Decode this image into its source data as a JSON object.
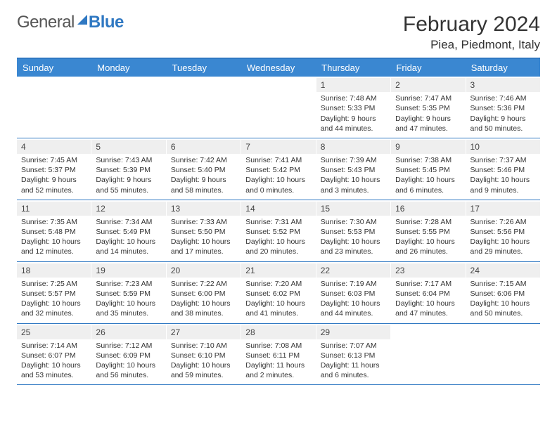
{
  "logo": {
    "word1": "General",
    "word2": "Blue"
  },
  "title": "February 2024",
  "location": "Piea, Piedmont, Italy",
  "colors": {
    "accent": "#3a87d1",
    "accent_border": "#2f78c2",
    "daynum_bg": "#efefef",
    "text": "#333333",
    "background": "#ffffff"
  },
  "day_names": [
    "Sunday",
    "Monday",
    "Tuesday",
    "Wednesday",
    "Thursday",
    "Friday",
    "Saturday"
  ],
  "weeks": [
    [
      {
        "empty": true
      },
      {
        "empty": true
      },
      {
        "empty": true
      },
      {
        "empty": true
      },
      {
        "day": "1",
        "sunrise": "Sunrise: 7:48 AM",
        "sunset": "Sunset: 5:33 PM",
        "daylight1": "Daylight: 9 hours",
        "daylight2": "and 44 minutes."
      },
      {
        "day": "2",
        "sunrise": "Sunrise: 7:47 AM",
        "sunset": "Sunset: 5:35 PM",
        "daylight1": "Daylight: 9 hours",
        "daylight2": "and 47 minutes."
      },
      {
        "day": "3",
        "sunrise": "Sunrise: 7:46 AM",
        "sunset": "Sunset: 5:36 PM",
        "daylight1": "Daylight: 9 hours",
        "daylight2": "and 50 minutes."
      }
    ],
    [
      {
        "day": "4",
        "sunrise": "Sunrise: 7:45 AM",
        "sunset": "Sunset: 5:37 PM",
        "daylight1": "Daylight: 9 hours",
        "daylight2": "and 52 minutes."
      },
      {
        "day": "5",
        "sunrise": "Sunrise: 7:43 AM",
        "sunset": "Sunset: 5:39 PM",
        "daylight1": "Daylight: 9 hours",
        "daylight2": "and 55 minutes."
      },
      {
        "day": "6",
        "sunrise": "Sunrise: 7:42 AM",
        "sunset": "Sunset: 5:40 PM",
        "daylight1": "Daylight: 9 hours",
        "daylight2": "and 58 minutes."
      },
      {
        "day": "7",
        "sunrise": "Sunrise: 7:41 AM",
        "sunset": "Sunset: 5:42 PM",
        "daylight1": "Daylight: 10 hours",
        "daylight2": "and 0 minutes."
      },
      {
        "day": "8",
        "sunrise": "Sunrise: 7:39 AM",
        "sunset": "Sunset: 5:43 PM",
        "daylight1": "Daylight: 10 hours",
        "daylight2": "and 3 minutes."
      },
      {
        "day": "9",
        "sunrise": "Sunrise: 7:38 AM",
        "sunset": "Sunset: 5:45 PM",
        "daylight1": "Daylight: 10 hours",
        "daylight2": "and 6 minutes."
      },
      {
        "day": "10",
        "sunrise": "Sunrise: 7:37 AM",
        "sunset": "Sunset: 5:46 PM",
        "daylight1": "Daylight: 10 hours",
        "daylight2": "and 9 minutes."
      }
    ],
    [
      {
        "day": "11",
        "sunrise": "Sunrise: 7:35 AM",
        "sunset": "Sunset: 5:48 PM",
        "daylight1": "Daylight: 10 hours",
        "daylight2": "and 12 minutes."
      },
      {
        "day": "12",
        "sunrise": "Sunrise: 7:34 AM",
        "sunset": "Sunset: 5:49 PM",
        "daylight1": "Daylight: 10 hours",
        "daylight2": "and 14 minutes."
      },
      {
        "day": "13",
        "sunrise": "Sunrise: 7:33 AM",
        "sunset": "Sunset: 5:50 PM",
        "daylight1": "Daylight: 10 hours",
        "daylight2": "and 17 minutes."
      },
      {
        "day": "14",
        "sunrise": "Sunrise: 7:31 AM",
        "sunset": "Sunset: 5:52 PM",
        "daylight1": "Daylight: 10 hours",
        "daylight2": "and 20 minutes."
      },
      {
        "day": "15",
        "sunrise": "Sunrise: 7:30 AM",
        "sunset": "Sunset: 5:53 PM",
        "daylight1": "Daylight: 10 hours",
        "daylight2": "and 23 minutes."
      },
      {
        "day": "16",
        "sunrise": "Sunrise: 7:28 AM",
        "sunset": "Sunset: 5:55 PM",
        "daylight1": "Daylight: 10 hours",
        "daylight2": "and 26 minutes."
      },
      {
        "day": "17",
        "sunrise": "Sunrise: 7:26 AM",
        "sunset": "Sunset: 5:56 PM",
        "daylight1": "Daylight: 10 hours",
        "daylight2": "and 29 minutes."
      }
    ],
    [
      {
        "day": "18",
        "sunrise": "Sunrise: 7:25 AM",
        "sunset": "Sunset: 5:57 PM",
        "daylight1": "Daylight: 10 hours",
        "daylight2": "and 32 minutes."
      },
      {
        "day": "19",
        "sunrise": "Sunrise: 7:23 AM",
        "sunset": "Sunset: 5:59 PM",
        "daylight1": "Daylight: 10 hours",
        "daylight2": "and 35 minutes."
      },
      {
        "day": "20",
        "sunrise": "Sunrise: 7:22 AM",
        "sunset": "Sunset: 6:00 PM",
        "daylight1": "Daylight: 10 hours",
        "daylight2": "and 38 minutes."
      },
      {
        "day": "21",
        "sunrise": "Sunrise: 7:20 AM",
        "sunset": "Sunset: 6:02 PM",
        "daylight1": "Daylight: 10 hours",
        "daylight2": "and 41 minutes."
      },
      {
        "day": "22",
        "sunrise": "Sunrise: 7:19 AM",
        "sunset": "Sunset: 6:03 PM",
        "daylight1": "Daylight: 10 hours",
        "daylight2": "and 44 minutes."
      },
      {
        "day": "23",
        "sunrise": "Sunrise: 7:17 AM",
        "sunset": "Sunset: 6:04 PM",
        "daylight1": "Daylight: 10 hours",
        "daylight2": "and 47 minutes."
      },
      {
        "day": "24",
        "sunrise": "Sunrise: 7:15 AM",
        "sunset": "Sunset: 6:06 PM",
        "daylight1": "Daylight: 10 hours",
        "daylight2": "and 50 minutes."
      }
    ],
    [
      {
        "day": "25",
        "sunrise": "Sunrise: 7:14 AM",
        "sunset": "Sunset: 6:07 PM",
        "daylight1": "Daylight: 10 hours",
        "daylight2": "and 53 minutes."
      },
      {
        "day": "26",
        "sunrise": "Sunrise: 7:12 AM",
        "sunset": "Sunset: 6:09 PM",
        "daylight1": "Daylight: 10 hours",
        "daylight2": "and 56 minutes."
      },
      {
        "day": "27",
        "sunrise": "Sunrise: 7:10 AM",
        "sunset": "Sunset: 6:10 PM",
        "daylight1": "Daylight: 10 hours",
        "daylight2": "and 59 minutes."
      },
      {
        "day": "28",
        "sunrise": "Sunrise: 7:08 AM",
        "sunset": "Sunset: 6:11 PM",
        "daylight1": "Daylight: 11 hours",
        "daylight2": "and 2 minutes."
      },
      {
        "day": "29",
        "sunrise": "Sunrise: 7:07 AM",
        "sunset": "Sunset: 6:13 PM",
        "daylight1": "Daylight: 11 hours",
        "daylight2": "and 6 minutes."
      },
      {
        "empty": true
      },
      {
        "empty": true
      }
    ]
  ]
}
